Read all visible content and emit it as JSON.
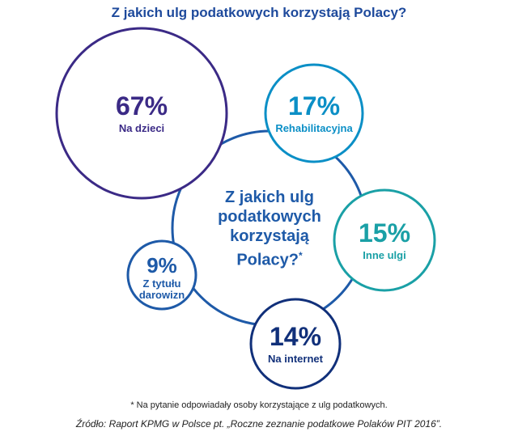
{
  "chart_data": {
    "type": "bubble",
    "title": "Z jakich ulg podatkowych korzystają Polacy?",
    "center_label": "Z jakich ulg podatkowych korzystają Polacy?",
    "center_marker": "*",
    "categories": [
      "Na dzieci",
      "Rehabilitacyjna",
      "Inne ulgi",
      "Z tytułu darowizn",
      "Na internet"
    ],
    "values": [
      67,
      17,
      15,
      9,
      14
    ],
    "value_labels": [
      "67%",
      "17%",
      "15%",
      "9%",
      "14%"
    ],
    "colors": [
      "#3b2a86",
      "#0b8fc6",
      "#1aa0a6",
      "#1e5aa8",
      "#11307a"
    ],
    "center_color": "#1e5aa8",
    "footnote": "* Na pytanie odpowiadały osoby korzystające z ulg podatkowych.",
    "source": "Źródło: Raport KPMG w Polsce pt. „Roczne zeznanie podatkowe Polaków PIT 2016”."
  }
}
